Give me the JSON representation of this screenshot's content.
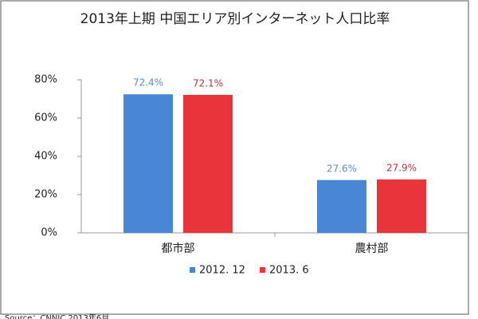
{
  "chart_data": {
    "type": "bar",
    "title": "2013年上期 中国エリア別インターネット人口比率",
    "categories": [
      "都市部",
      "農村部"
    ],
    "series": [
      {
        "name": "2012. 12",
        "color": "#4a86d6",
        "label_color": "#5b8fcf",
        "values": [
          72.4,
          27.6
        ],
        "value_labels": [
          "72.4%",
          "27.6%"
        ]
      },
      {
        "name": "2013. 6",
        "color": "#e8343a",
        "label_color": "#c2333d",
        "values": [
          72.1,
          27.9
        ],
        "value_labels": [
          "72.1%",
          "27.9%"
        ]
      }
    ],
    "ylim": [
      0,
      80
    ],
    "yticks": [
      {
        "value": 0,
        "label": "0%"
      },
      {
        "value": 20,
        "label": "20%"
      },
      {
        "value": 40,
        "label": "40%"
      },
      {
        "value": 60,
        "label": "60%"
      },
      {
        "value": 80,
        "label": "80%"
      }
    ],
    "grid": false,
    "source": "Source：CNNIC 2013年6月"
  }
}
